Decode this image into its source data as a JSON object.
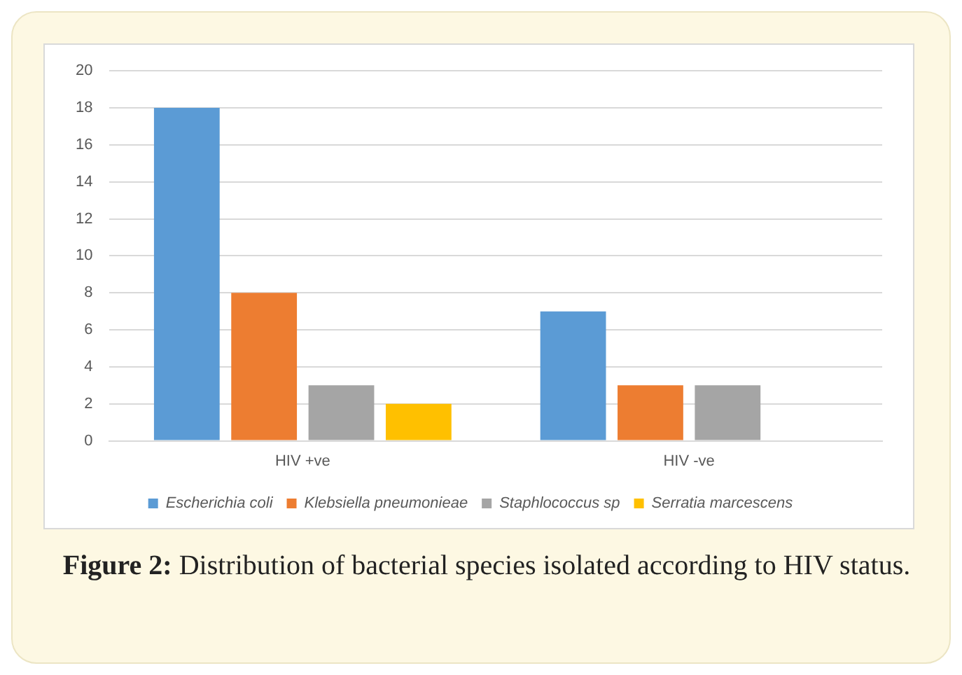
{
  "chart_data": {
    "type": "bar",
    "categories": [
      "HIV +ve",
      "HIV -ve"
    ],
    "series": [
      {
        "name": "Escherichia coli",
        "color": "#5b9bd5",
        "values": [
          18,
          7
        ]
      },
      {
        "name": "Klebsiella pneumonieae",
        "color": "#ed7d31",
        "values": [
          8,
          3
        ]
      },
      {
        "name": "Staphlococcus sp",
        "color": "#a5a5a5",
        "values": [
          3,
          3
        ]
      },
      {
        "name": "Serratia marcescens",
        "color": "#ffc000",
        "values": [
          2,
          0
        ]
      }
    ],
    "ylim": [
      0,
      20
    ],
    "yticks": [
      0,
      2,
      4,
      6,
      8,
      10,
      12,
      14,
      16,
      18,
      20
    ],
    "grid": "y",
    "legend": "bottom",
    "annotations": [
      "Figure 2: Distribution of bacterial species isolated according to HIV status."
    ]
  }
}
